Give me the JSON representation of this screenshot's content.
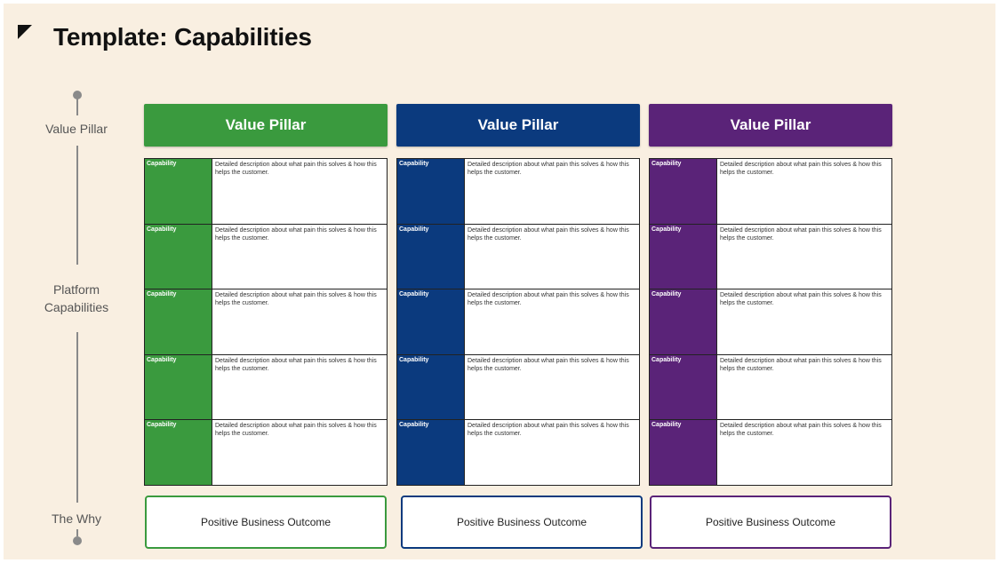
{
  "title": "Template: Capabilities",
  "axis": {
    "labels": [
      "Value Pillar",
      "Platform Capabilities",
      "The Why"
    ]
  },
  "columns": [
    {
      "header": "Value Pillar",
      "color": "#3a9a3e",
      "capabilities": [
        {
          "label": "Capability",
          "description": "Detailed description about what pain this solves & how this helps the customer."
        },
        {
          "label": "Capability",
          "description": "Detailed description about what pain this solves & how this helps the customer."
        },
        {
          "label": "Capability",
          "description": "Detailed description about what pain this solves & how this helps the customer."
        },
        {
          "label": "Capability",
          "description": "Detailed description about what pain this solves & how this helps the customer."
        },
        {
          "label": "Capability",
          "description": "Detailed description about what pain this solves & how this helps the customer."
        }
      ],
      "outcome": "Positive Business Outcome"
    },
    {
      "header": "Value Pillar",
      "color": "#0b3a7e",
      "capabilities": [
        {
          "label": "Capability",
          "description": "Detailed description about what pain this solves & how this helps the customer."
        },
        {
          "label": "Capability",
          "description": "Detailed description about what pain this solves & how this helps the customer."
        },
        {
          "label": "Capability",
          "description": "Detailed description about what pain this solves & how this helps the customer."
        },
        {
          "label": "Capability",
          "description": "Detailed description about what pain this solves & how this helps the customer."
        },
        {
          "label": "Capability",
          "description": "Detailed description about what pain this solves & how this helps the customer."
        }
      ],
      "outcome": "Positive Business Outcome"
    },
    {
      "header": "Value Pillar",
      "color": "#5a2378",
      "capabilities": [
        {
          "label": "Capability",
          "description": "Detailed description about what pain this solves & how this helps the customer."
        },
        {
          "label": "Capability",
          "description": "Detailed description about what pain this solves & how this helps the customer."
        },
        {
          "label": "Capability",
          "description": "Detailed description about what pain this solves & how this helps the customer."
        },
        {
          "label": "Capability",
          "description": "Detailed description about what pain this solves & how this helps the customer."
        },
        {
          "label": "Capability",
          "description": "Detailed description about what pain this solves & how this helps the customer."
        }
      ],
      "outcome": "Positive Business Outcome"
    }
  ]
}
